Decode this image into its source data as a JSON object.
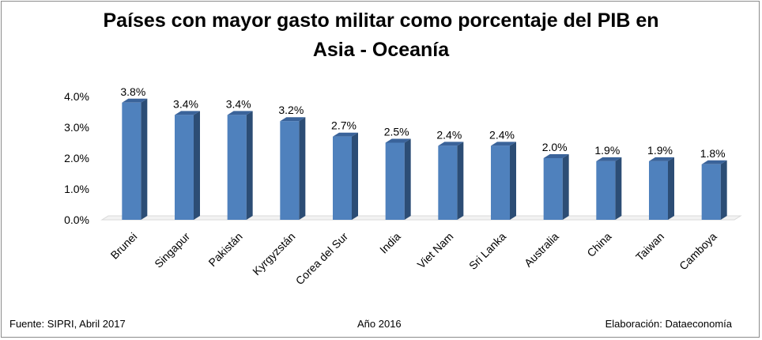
{
  "chart_data": {
    "type": "bar",
    "title_line1": "Países con mayor gasto militar como porcentaje del PIB en",
    "title_line2": "Asia - Oceanía",
    "categories": [
      "Brunei",
      "Singapur",
      "Pakistán",
      "Kyrgyzstán",
      "Corea del Sur",
      "India",
      "Viet Nam",
      "Sri Lanka",
      "Australia",
      "China",
      "Taiwan",
      "Camboya"
    ],
    "values": [
      3.8,
      3.4,
      3.4,
      3.2,
      2.7,
      2.5,
      2.4,
      2.4,
      2.0,
      1.9,
      1.9,
      1.8
    ],
    "data_labels": [
      "3.8%",
      "3.4%",
      "3.4%",
      "3.2%",
      "2.7%",
      "2.5%",
      "2.4%",
      "2.4%",
      "2.0%",
      "1.9%",
      "1.9%",
      "1.8%"
    ],
    "y_ticks": [
      0,
      1,
      2,
      3,
      4
    ],
    "y_tick_labels": [
      "0.0%",
      "1.0%",
      "2.0%",
      "3.0%",
      "4.0%"
    ],
    "ylim": [
      0,
      4
    ],
    "grid": false,
    "legend": "none",
    "style": "3d-column",
    "colors": {
      "bar_front": "#4f81bd",
      "bar_side": "#2c4d75",
      "bar_top": "#3a639a"
    }
  },
  "footer": {
    "source": "Fuente: SIPRI, Abril 2017",
    "year": "Año 2016",
    "credit": "Elaboración: Dataeconomía"
  }
}
